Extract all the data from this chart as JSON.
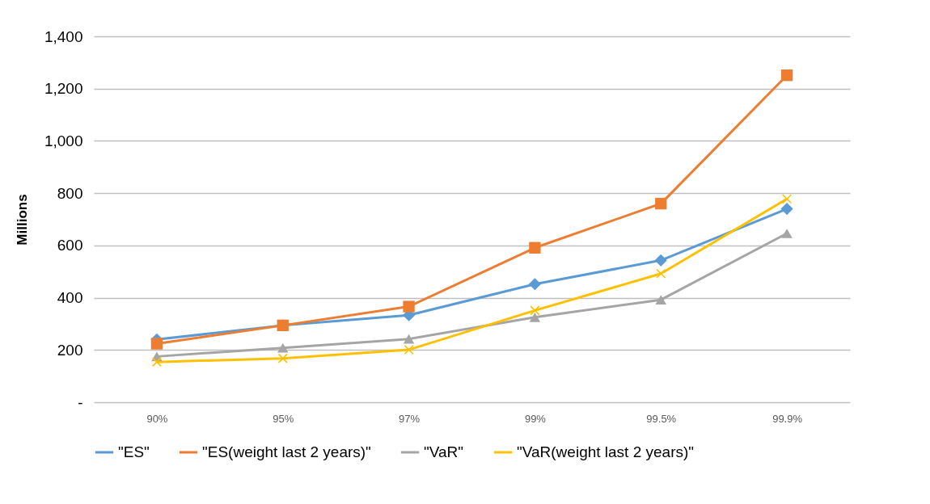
{
  "chart_data": {
    "type": "line",
    "ylabel": "Millions",
    "categories": [
      "90%",
      "95%",
      "97%",
      "99%",
      "99.5%",
      "99.9%"
    ],
    "series": [
      {
        "name": "\"ES\"",
        "color": "#5b9bd5",
        "marker": "diamond",
        "values": [
          240,
          294,
          333,
          452,
          543,
          740
        ]
      },
      {
        "name": "\"ES(weight last 2 years)\"",
        "color": "#ed7d31",
        "marker": "square",
        "values": [
          224,
          294,
          366,
          591,
          760,
          1251
        ]
      },
      {
        "name": "\"VaR\"",
        "color": "#a5a5a5",
        "marker": "triangle",
        "values": [
          175,
          208,
          242,
          325,
          392,
          646
        ]
      },
      {
        "name": "\"VaR(weight last 2 years)\"",
        "color": "#ffc000",
        "marker": "cross",
        "values": [
          154,
          168,
          201,
          351,
          492,
          778
        ]
      }
    ],
    "ylim": [
      0,
      1400
    ],
    "yticks": [
      {
        "value": 0,
        "label": "-"
      },
      200,
      400,
      600,
      800,
      {
        "value": 1000,
        "label": "1,000"
      },
      {
        "value": 1200,
        "label": "1,200"
      },
      {
        "value": 1400,
        "label": "1,400"
      }
    ],
    "grid": "y",
    "legend": "bottom"
  }
}
